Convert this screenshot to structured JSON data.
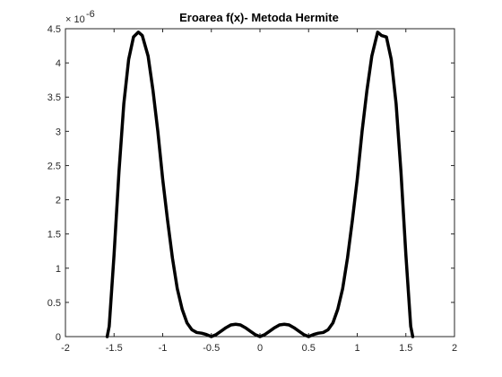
{
  "chart_data": {
    "type": "line",
    "title": "Eroarea f(x)- Metoda Hermite",
    "xlabel": "",
    "ylabel": "",
    "xlim": [
      -2,
      2
    ],
    "ylim": [
      0,
      4.5
    ],
    "y_exponent_label": "× 10",
    "y_exponent_power": "-6",
    "x_ticks": [
      -2,
      -1.5,
      -1,
      -0.5,
      0,
      0.5,
      1,
      1.5,
      2
    ],
    "x_tick_labels": [
      "-2",
      "-1.5",
      "-1",
      "-0.5",
      "0",
      "0.5",
      "1",
      "1.5",
      "2"
    ],
    "y_ticks": [
      0,
      0.5,
      1,
      1.5,
      2,
      2.5,
      3,
      3.5,
      4,
      4.5
    ],
    "y_tick_labels": [
      "0",
      "0.5",
      "1",
      "1.5",
      "2",
      "2.5",
      "3",
      "3.5",
      "4",
      "4.5"
    ],
    "grid": false,
    "line_color": "#000000",
    "series": [
      {
        "x": [
          -1.5708,
          -1.55,
          -1.5,
          -1.45,
          -1.4,
          -1.35,
          -1.3,
          -1.25,
          -1.21,
          -1.15,
          -1.1,
          -1.05,
          -1.0,
          -0.95,
          -0.9,
          -0.85,
          -0.8,
          -0.75,
          -0.7,
          -0.65,
          -0.6,
          -0.55,
          -0.5,
          -0.45,
          -0.4,
          -0.35,
          -0.3,
          -0.25,
          -0.2,
          -0.15,
          -0.1,
          -0.05,
          0,
          0.05,
          0.1,
          0.15,
          0.2,
          0.25,
          0.3,
          0.35,
          0.4,
          0.45,
          0.5,
          0.55,
          0.6,
          0.65,
          0.7,
          0.75,
          0.8,
          0.85,
          0.9,
          0.95,
          1.0,
          1.05,
          1.1,
          1.15,
          1.21,
          1.25,
          1.3,
          1.35,
          1.4,
          1.45,
          1.5,
          1.55,
          1.5708
        ],
        "y": [
          0,
          0.15,
          1.2,
          2.4,
          3.4,
          4.05,
          4.38,
          4.45,
          4.4,
          4.1,
          3.6,
          3.0,
          2.3,
          1.7,
          1.15,
          0.7,
          0.4,
          0.2,
          0.1,
          0.06,
          0.05,
          0.03,
          0,
          0.03,
          0.08,
          0.13,
          0.17,
          0.18,
          0.17,
          0.13,
          0.08,
          0.03,
          0,
          0.03,
          0.08,
          0.13,
          0.17,
          0.18,
          0.17,
          0.13,
          0.08,
          0.03,
          0,
          0.03,
          0.05,
          0.06,
          0.1,
          0.2,
          0.4,
          0.7,
          1.15,
          1.7,
          2.3,
          3.0,
          3.6,
          4.1,
          4.45,
          4.4,
          4.38,
          4.05,
          3.4,
          2.4,
          1.2,
          0.15,
          0
        ]
      }
    ]
  }
}
